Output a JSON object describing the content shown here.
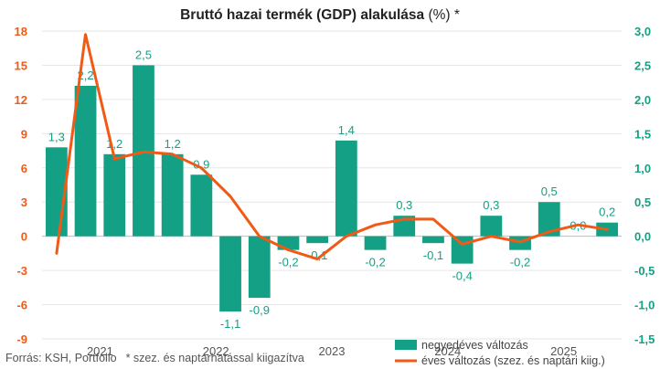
{
  "chart_data": {
    "type": "bar+line",
    "title": "Bruttó hazai termék (GDP) alakulása",
    "title_suffix": " (%) *",
    "source": "Forrás: KSH, Portfolio",
    "note": "* szez. és naptárhatással kiigazítva",
    "left_axis": {
      "ylim": [
        -9,
        18
      ],
      "ticks": [
        18,
        15,
        12,
        9,
        6,
        3,
        0,
        -3,
        -6,
        -9
      ],
      "tick_labels": [
        "18",
        "15",
        "12",
        "9",
        "6",
        "3",
        "0",
        "-3",
        "-6",
        "-9"
      ],
      "color": "#f05a16"
    },
    "right_axis": {
      "ylim": [
        -1.5,
        3.0
      ],
      "ticks": [
        3.0,
        2.5,
        2.0,
        1.5,
        1.0,
        0.5,
        0.0,
        -0.5,
        -1.0,
        -1.5
      ],
      "tick_labels": [
        "3,0",
        "2,5",
        "2,0",
        "1,5",
        "1,0",
        "0,5",
        "0,0",
        "-0,5",
        "-1,0",
        "-1,5"
      ],
      "color": "#14a085"
    },
    "x_labels": [
      "2021",
      "2022",
      "2023",
      "2024",
      "2025"
    ],
    "series": [
      {
        "name": "negyedéves változás",
        "type": "bar",
        "axis": "right",
        "color": "#14a085",
        "values": [
          1.3,
          2.2,
          1.2,
          2.5,
          1.2,
          0.9,
          -1.1,
          -0.9,
          -0.2,
          -0.1,
          1.4,
          -0.2,
          0.3,
          -0.1,
          -0.4,
          0.3,
          -0.2,
          0.5,
          0.0,
          0.2
        ],
        "labels": [
          "1,3",
          "2,2",
          "1,2",
          "2,5",
          "1,2",
          "0,9",
          "-1,1",
          "-0,9",
          "-0,2",
          "-0,1",
          "1,4",
          "-0,2",
          "0,3",
          "-0,1",
          "-0,4",
          "0,3",
          "-0,2",
          "0,5",
          "0,0",
          "0,2"
        ]
      },
      {
        "name": "éves változás (szez. és naptári kiig.)",
        "type": "line",
        "axis": "left",
        "color": "#f05a16",
        "values": [
          -1.5,
          17.7,
          6.8,
          7.4,
          7.2,
          6.0,
          3.5,
          0.0,
          -1.2,
          -2.0,
          0.0,
          1.0,
          1.5,
          1.5,
          -0.7,
          0.0,
          -0.5,
          0.4,
          1.0,
          0.6
        ]
      }
    ]
  }
}
